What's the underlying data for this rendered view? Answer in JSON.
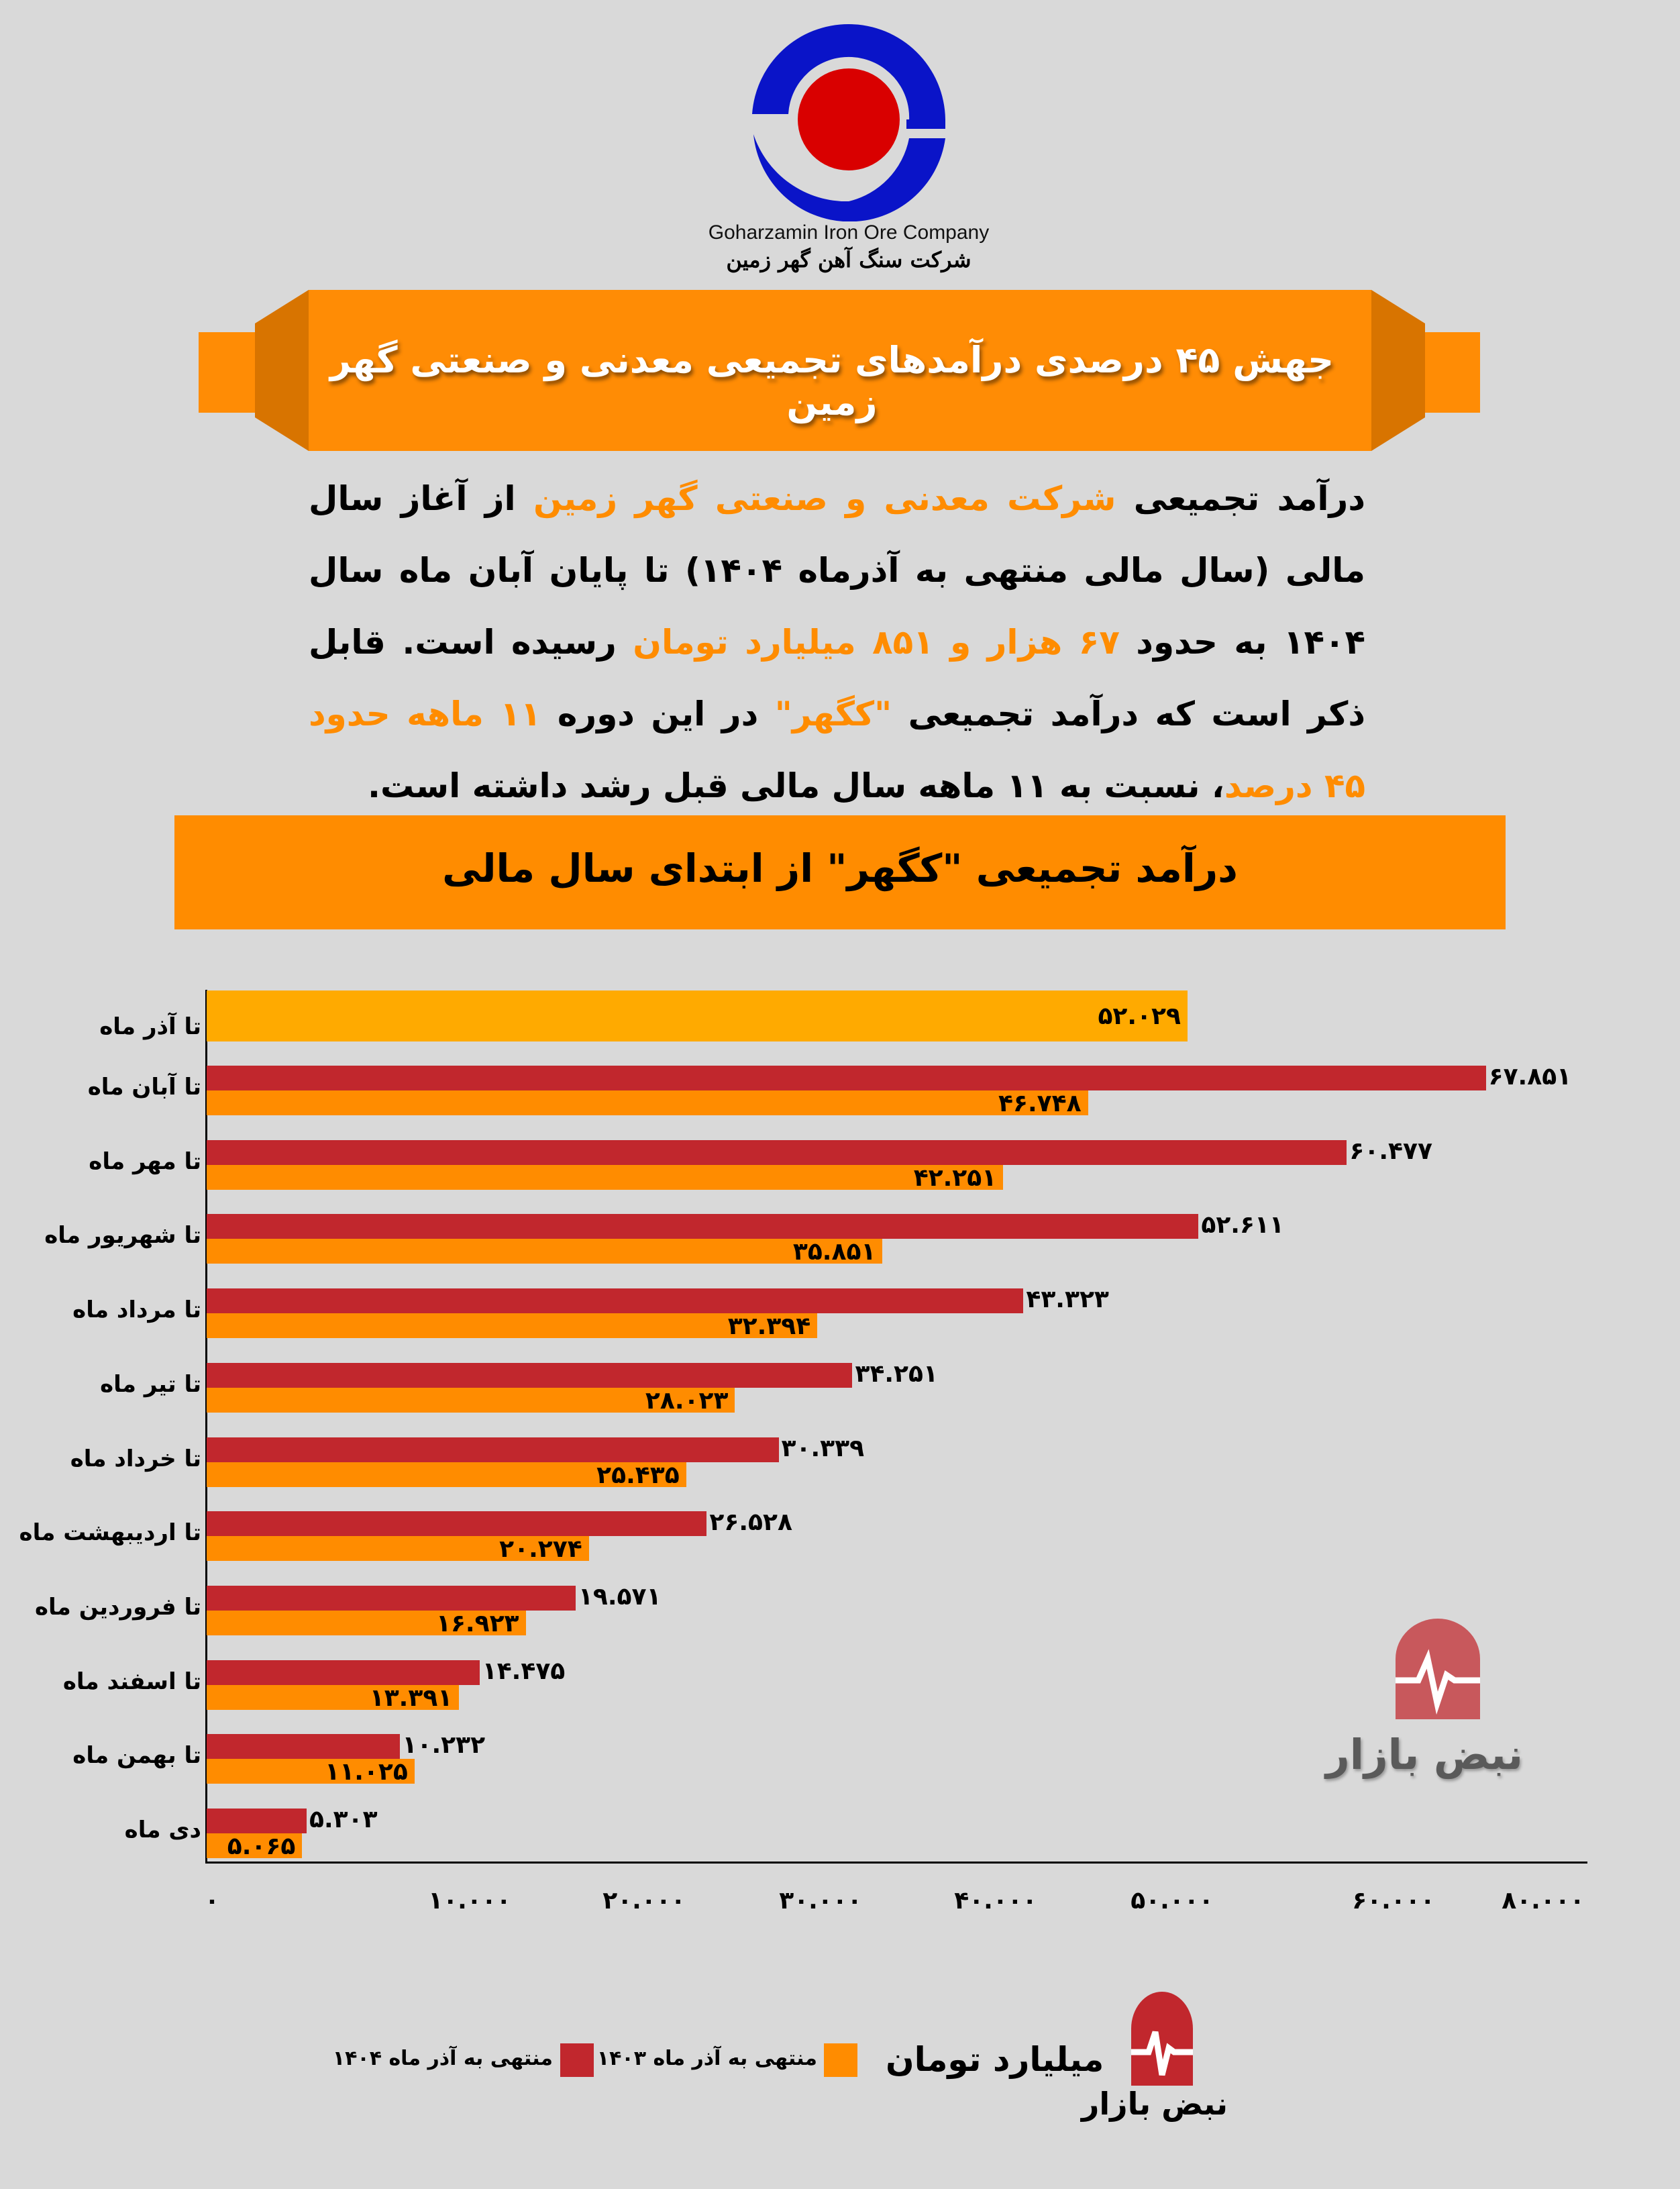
{
  "logo": {
    "company_en": "Goharzamin Iron Ore Company",
    "company_fa": "شرکت سنگ آهن گهر زمین",
    "colors": {
      "ring": "#0a14c8",
      "dot": "#d90000"
    }
  },
  "banner": {
    "title": "جهش ۴۵ درصدی درآمدهای تجمیعی معدنی و صنعتی گهر زمین"
  },
  "paragraph": {
    "s1": "درآمد تجمیعی ",
    "s2": "شرکت معدنی و صنعتی گهر زمین",
    "s3": " از آغاز سال مالی (سال مالی منتهی به آذرماه ۱۴۰۴) تا پایان آبان ماه سال ۱۴۰۴ به حدود ",
    "s4": "۶۷ هزار و ۸۵۱ میلیارد تومان",
    "s5": " رسیده است. قابل ذکر است که درآمد تجمیعی ",
    "s6": "\"کگهر\"",
    "s7": " در این دوره ",
    "s8": "۱۱ ماهه حدود ۴۵ درصد",
    "s9": "، نسبت به ۱۱ ماهه سال مالی قبل رشد داشته است."
  },
  "watermark": {
    "text": "نبض بازار"
  },
  "chart_data": {
    "type": "bar",
    "orientation": "horizontal",
    "title": "درآمد تجمیعی \"کگهر\" از ابتدای سال مالی",
    "unit": "میلیارد تومان",
    "categories": [
      "تا آذر ماه",
      "تا آبان ماه",
      "تا مهر ماه",
      "تا شهریور ماه",
      "تا مرداد ماه",
      "تا تیر ماه",
      "تا خرداد ماه",
      "تا اردیبهشت ماه",
      "تا فروردین ماه",
      "تا اسفند ماه",
      "تا بهمن ماه",
      "دی ماه"
    ],
    "series": [
      {
        "name": "منتهی به آذر ماه ۱۴۰۴",
        "color": "#c1272d",
        "values": [
          null,
          67851,
          60477,
          52611,
          43323,
          34251,
          30339,
          26528,
          19571,
          14475,
          10232,
          5303
        ]
      },
      {
        "name": "منتهی به آذر ماه ۱۴۰۳",
        "color": "#ff8c00",
        "values": [
          52029,
          46748,
          42251,
          35851,
          32394,
          28023,
          25435,
          20274,
          16923,
          13391,
          11025,
          5065
        ]
      }
    ],
    "highlight_color": "#ffaa00",
    "x_tick_labels": [
      "۰",
      "۱۰.۰۰۰",
      "۲۰.۰۰۰",
      "۳۰.۰۰۰",
      "۴۰.۰۰۰",
      "۵۰.۰۰۰",
      "۶۰.۰۰۰",
      "۸۰.۰۰۰"
    ],
    "xlim": [
      0,
      70000
    ],
    "grid": false,
    "legend": "bottom"
  }
}
